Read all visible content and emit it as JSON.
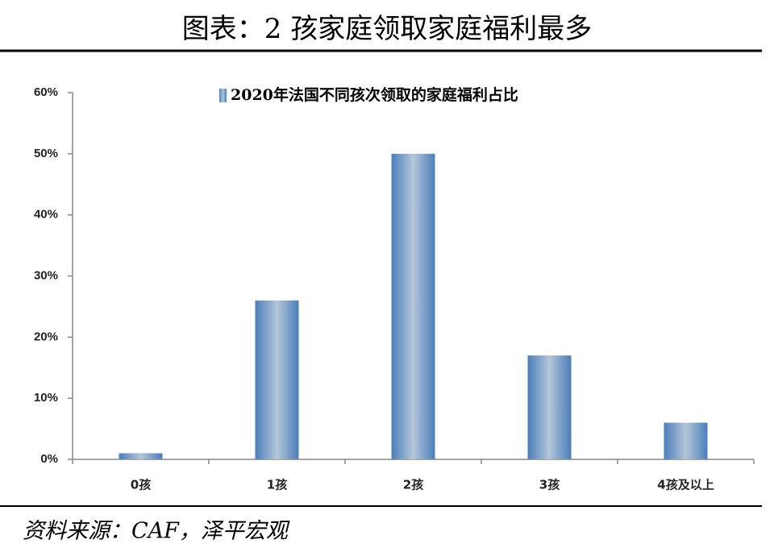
{
  "chart_data": {
    "type": "bar",
    "title": "图表：2 孩家庭领取家庭福利最多",
    "legend": "2020年法国不同孩次领取的家庭福利占比",
    "source": "资料来源：CAF，泽平宏观",
    "categories": [
      "0孩",
      "1孩",
      "2孩",
      "3孩",
      "4孩及以上"
    ],
    "values": [
      1,
      26,
      50,
      17,
      6
    ],
    "color": "#4a7ebb",
    "ylim": [
      0,
      60
    ],
    "yticks": [
      {
        "value": 0,
        "label": "0%"
      },
      {
        "value": 10,
        "label": "10%"
      },
      {
        "value": 20,
        "label": "20%"
      },
      {
        "value": 30,
        "label": "30%"
      },
      {
        "value": 40,
        "label": "40%"
      },
      {
        "value": 50,
        "label": "50%"
      },
      {
        "value": 60,
        "label": "60%"
      }
    ]
  }
}
